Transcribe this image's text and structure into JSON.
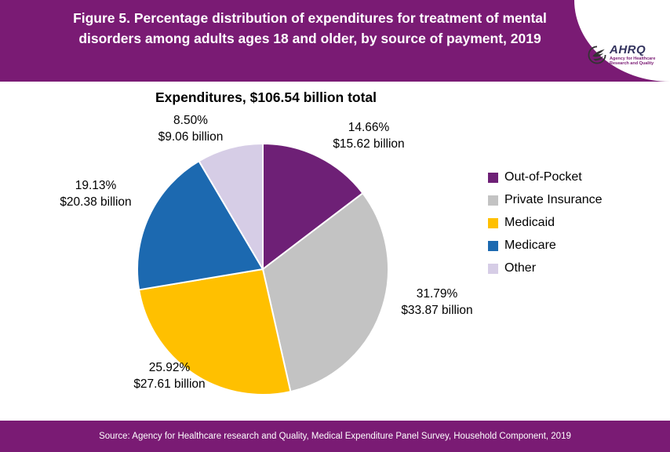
{
  "colors": {
    "banner": "#7a1b74",
    "accent_purple": "#6e2076"
  },
  "header": {
    "title": "Figure 5. Percentage distribution of expenditures for treatment of mental disorders among adults ages 18 and older, by source of payment, 2019"
  },
  "logo": {
    "name": "AHRQ",
    "tagline": "Agency for Healthcare Research and Quality"
  },
  "subtitle": "Expenditures, $106.54 billion total",
  "chart_data": {
    "type": "pie",
    "title": "Expenditures, $106.54 billion total",
    "total": "$106.54 billion",
    "start_angle_deg": 0,
    "direction": "clockwise",
    "legend_position": "right",
    "slices": [
      {
        "label": "Out-of-Pocket",
        "percent": 14.66,
        "pct_label": "14.66%",
        "value_label": "$15.62 billion",
        "color": "#6e2076"
      },
      {
        "label": "Private Insurance",
        "percent": 31.79,
        "pct_label": "31.79%",
        "value_label": "$33.87 billion",
        "color": "#c3c3c3"
      },
      {
        "label": "Medicaid",
        "percent": 25.92,
        "pct_label": "25.92%",
        "value_label": "$27.61 billion",
        "color": "#ffc000"
      },
      {
        "label": "Medicare",
        "percent": 19.13,
        "pct_label": "19.13%",
        "value_label": "$20.38 billion",
        "color": "#1c69b0"
      },
      {
        "label": "Other",
        "percent": 8.5,
        "pct_label": "8.50%",
        "value_label": "$9.06 billion",
        "color": "#d6cde6"
      }
    ]
  },
  "footer": {
    "source": "Source: Agency for Healthcare research and Quality, Medical Expenditure Panel Survey,  Household Component, 2019"
  }
}
